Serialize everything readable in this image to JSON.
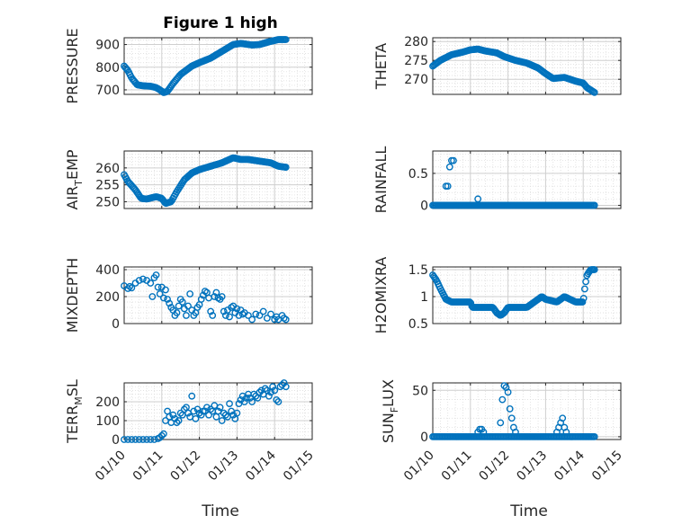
{
  "figure": {
    "title": "Figure 1 high",
    "xlabel_left": "Time",
    "xlabel_right": "Time",
    "marker_color": "#0072BD",
    "x_ticks": [
      "01/10",
      "01/11",
      "01/12",
      "01/13",
      "01/14",
      "01/15"
    ]
  },
  "chart_data": [
    {
      "type": "scatter",
      "name": "pressure",
      "ylabel": {
        "main": "PRESSURE",
        "sub": "",
        "tail": ""
      },
      "xlim": [
        0,
        5
      ],
      "ylim": [
        680,
        930
      ],
      "yticks": [
        700,
        800,
        900
      ],
      "grid": true,
      "anchors": [
        [
          0.0,
          805
        ],
        [
          0.1,
          785
        ],
        [
          0.2,
          752
        ],
        [
          0.35,
          722
        ],
        [
          0.5,
          718
        ],
        [
          0.7,
          716
        ],
        [
          0.85,
          710
        ],
        [
          0.95,
          700
        ],
        [
          1.05,
          688
        ],
        [
          1.15,
          693
        ],
        [
          1.3,
          728
        ],
        [
          1.5,
          768
        ],
        [
          1.8,
          805
        ],
        [
          2.0,
          820
        ],
        [
          2.3,
          840
        ],
        [
          2.6,
          870
        ],
        [
          2.9,
          900
        ],
        [
          3.1,
          905
        ],
        [
          3.4,
          898
        ],
        [
          3.6,
          900
        ],
        [
          3.85,
          912
        ],
        [
          4.1,
          922
        ],
        [
          4.3,
          922
        ]
      ],
      "n": 140
    },
    {
      "type": "scatter",
      "name": "theta",
      "ylabel": {
        "main": "THETA",
        "sub": "",
        "tail": ""
      },
      "xlim": [
        0,
        5
      ],
      "ylim": [
        266,
        281
      ],
      "yticks": [
        270,
        275,
        280
      ],
      "grid": true,
      "anchors": [
        [
          0.0,
          273.5
        ],
        [
          0.2,
          275
        ],
        [
          0.5,
          276.5
        ],
        [
          0.8,
          277.2
        ],
        [
          1.0,
          277.8
        ],
        [
          1.2,
          278
        ],
        [
          1.4,
          277.5
        ],
        [
          1.7,
          277
        ],
        [
          1.9,
          276
        ],
        [
          2.2,
          275
        ],
        [
          2.5,
          274.3
        ],
        [
          2.8,
          273
        ],
        [
          3.0,
          271.5
        ],
        [
          3.2,
          270.2
        ],
        [
          3.5,
          270.5
        ],
        [
          3.8,
          269.5
        ],
        [
          4.0,
          269
        ],
        [
          4.1,
          267.8
        ],
        [
          4.3,
          266.5
        ]
      ],
      "n": 140
    },
    {
      "type": "scatter",
      "name": "air-temp",
      "ylabel": {
        "main": "AIR",
        "sub": "T",
        "tail": "EMP"
      },
      "xlim": [
        0,
        5
      ],
      "ylim": [
        248,
        265
      ],
      "yticks": [
        250,
        255,
        260
      ],
      "grid": true,
      "anchors": [
        [
          0.0,
          258
        ],
        [
          0.1,
          256
        ],
        [
          0.3,
          253.5
        ],
        [
          0.45,
          251
        ],
        [
          0.6,
          250.8
        ],
        [
          0.85,
          251.5
        ],
        [
          1.0,
          251
        ],
        [
          1.1,
          249.5
        ],
        [
          1.25,
          250
        ],
        [
          1.4,
          253
        ],
        [
          1.6,
          256.5
        ],
        [
          1.8,
          258.5
        ],
        [
          2.0,
          259.5
        ],
        [
          2.3,
          260.5
        ],
        [
          2.6,
          261.5
        ],
        [
          2.9,
          263
        ],
        [
          3.1,
          262.5
        ],
        [
          3.3,
          262.5
        ],
        [
          3.6,
          262
        ],
        [
          3.9,
          261.5
        ],
        [
          4.1,
          260.5
        ],
        [
          4.3,
          260.2
        ]
      ],
      "n": 140
    },
    {
      "type": "scatter",
      "name": "rainfall",
      "ylabel": {
        "main": "RAINFALL",
        "sub": "",
        "tail": ""
      },
      "xlim": [
        0,
        5
      ],
      "ylim": [
        -0.05,
        0.85
      ],
      "yticks": [
        0,
        0.5
      ],
      "grid": true,
      "baseline": {
        "x0": 0.0,
        "x1": 4.3,
        "y": 0,
        "n": 130
      },
      "points": [
        [
          0.35,
          0.3
        ],
        [
          0.4,
          0.3
        ],
        [
          0.45,
          0.6
        ],
        [
          0.5,
          0.7
        ],
        [
          0.55,
          0.7
        ],
        [
          0.6,
          0.0
        ],
        [
          1.2,
          0.1
        ]
      ]
    },
    {
      "type": "scatter",
      "name": "mixdepth",
      "ylabel": {
        "main": "MIXDEPTH",
        "sub": "",
        "tail": ""
      },
      "xlim": [
        0,
        5
      ],
      "ylim": [
        0,
        420
      ],
      "yticks": [
        0,
        200,
        400
      ],
      "grid": true,
      "points": [
        [
          0.0,
          280
        ],
        [
          0.1,
          260
        ],
        [
          0.15,
          275
        ],
        [
          0.2,
          265
        ],
        [
          0.3,
          300
        ],
        [
          0.4,
          320
        ],
        [
          0.5,
          330
        ],
        [
          0.6,
          320
        ],
        [
          0.7,
          300
        ],
        [
          0.75,
          200
        ],
        [
          0.8,
          340
        ],
        [
          0.85,
          360
        ],
        [
          0.9,
          270
        ],
        [
          0.95,
          220
        ],
        [
          1.0,
          270
        ],
        [
          1.05,
          190
        ],
        [
          1.1,
          250
        ],
        [
          1.15,
          180
        ],
        [
          1.2,
          150
        ],
        [
          1.25,
          120
        ],
        [
          1.3,
          100
        ],
        [
          1.35,
          60
        ],
        [
          1.4,
          80
        ],
        [
          1.45,
          130
        ],
        [
          1.5,
          180
        ],
        [
          1.55,
          160
        ],
        [
          1.6,
          110
        ],
        [
          1.65,
          60
        ],
        [
          1.7,
          130
        ],
        [
          1.75,
          220
        ],
        [
          1.8,
          100
        ],
        [
          1.85,
          60
        ],
        [
          1.9,
          80
        ],
        [
          1.95,
          120
        ],
        [
          2.0,
          140
        ],
        [
          2.05,
          180
        ],
        [
          2.1,
          210
        ],
        [
          2.15,
          240
        ],
        [
          2.2,
          230
        ],
        [
          2.25,
          190
        ],
        [
          2.3,
          90
        ],
        [
          2.35,
          60
        ],
        [
          2.4,
          200
        ],
        [
          2.45,
          230
        ],
        [
          2.5,
          190
        ],
        [
          2.55,
          180
        ],
        [
          2.6,
          200
        ],
        [
          2.65,
          90
        ],
        [
          2.7,
          60
        ],
        [
          2.75,
          100
        ],
        [
          2.8,
          50
        ],
        [
          2.85,
          120
        ],
        [
          2.9,
          130
        ],
        [
          2.95,
          80
        ],
        [
          3.0,
          110
        ],
        [
          3.05,
          60
        ],
        [
          3.1,
          100
        ],
        [
          3.15,
          70
        ],
        [
          3.2,
          80
        ],
        [
          3.3,
          60
        ],
        [
          3.4,
          30
        ],
        [
          3.5,
          70
        ],
        [
          3.6,
          60
        ],
        [
          3.7,
          90
        ],
        [
          3.8,
          40
        ],
        [
          3.9,
          70
        ],
        [
          4.0,
          30
        ],
        [
          4.05,
          50
        ],
        [
          4.1,
          30
        ],
        [
          4.2,
          60
        ],
        [
          4.25,
          40
        ],
        [
          4.3,
          30
        ]
      ]
    },
    {
      "type": "scatter",
      "name": "h2omixra",
      "ylabel": {
        "main": "H2OMIXRA",
        "sub": "",
        "tail": ""
      },
      "xlim": [
        0,
        5
      ],
      "ylim": [
        0.5,
        1.55
      ],
      "yticks": [
        0.5,
        1,
        1.5
      ],
      "grid": true,
      "anchors": [
        [
          0.0,
          1.4
        ],
        [
          0.1,
          1.3
        ],
        [
          0.2,
          1.15
        ],
        [
          0.35,
          0.95
        ],
        [
          0.5,
          0.9
        ],
        [
          1.0,
          0.9
        ],
        [
          1.05,
          0.8
        ],
        [
          1.6,
          0.8
        ],
        [
          1.7,
          0.7
        ],
        [
          1.8,
          0.65
        ],
        [
          1.9,
          0.7
        ],
        [
          2.0,
          0.8
        ],
        [
          2.5,
          0.8
        ],
        [
          2.7,
          0.9
        ],
        [
          2.9,
          1.0
        ],
        [
          3.0,
          0.95
        ],
        [
          3.3,
          0.9
        ],
        [
          3.5,
          1.0
        ],
        [
          3.8,
          0.9
        ],
        [
          4.0,
          0.9
        ],
        [
          4.05,
          1.2
        ],
        [
          4.1,
          1.4
        ],
        [
          4.2,
          1.5
        ],
        [
          4.3,
          1.5
        ]
      ],
      "n": 150
    },
    {
      "type": "scatter",
      "name": "terr-msl",
      "ylabel": {
        "main": "TERR",
        "sub": "M",
        "tail": "SL"
      },
      "xlim": [
        0,
        5
      ],
      "ylim": [
        0,
        300
      ],
      "yticks": [
        0,
        100,
        200
      ],
      "grid": true,
      "points": [
        [
          0.0,
          0
        ],
        [
          0.1,
          0
        ],
        [
          0.2,
          0
        ],
        [
          0.3,
          0
        ],
        [
          0.4,
          0
        ],
        [
          0.5,
          0
        ],
        [
          0.6,
          0
        ],
        [
          0.7,
          0
        ],
        [
          0.8,
          0
        ],
        [
          0.9,
          5
        ],
        [
          0.95,
          10
        ],
        [
          1.0,
          20
        ],
        [
          1.05,
          30
        ],
        [
          1.1,
          100
        ],
        [
          1.15,
          150
        ],
        [
          1.2,
          120
        ],
        [
          1.25,
          90
        ],
        [
          1.3,
          130
        ],
        [
          1.35,
          110
        ],
        [
          1.4,
          90
        ],
        [
          1.45,
          100
        ],
        [
          1.5,
          140
        ],
        [
          1.55,
          130
        ],
        [
          1.6,
          160
        ],
        [
          1.65,
          170
        ],
        [
          1.7,
          140
        ],
        [
          1.75,
          120
        ],
        [
          1.8,
          230
        ],
        [
          1.85,
          150
        ],
        [
          1.9,
          110
        ],
        [
          1.95,
          160
        ],
        [
          2.0,
          140
        ],
        [
          2.05,
          130
        ],
        [
          2.1,
          150
        ],
        [
          2.15,
          150
        ],
        [
          2.2,
          170
        ],
        [
          2.25,
          130
        ],
        [
          2.3,
          160
        ],
        [
          2.35,
          150
        ],
        [
          2.4,
          180
        ],
        [
          2.45,
          120
        ],
        [
          2.5,
          150
        ],
        [
          2.55,
          170
        ],
        [
          2.6,
          100
        ],
        [
          2.65,
          140
        ],
        [
          2.7,
          130
        ],
        [
          2.75,
          120
        ],
        [
          2.8,
          190
        ],
        [
          2.85,
          150
        ],
        [
          2.9,
          130
        ],
        [
          2.95,
          110
        ],
        [
          3.0,
          140
        ],
        [
          3.05,
          190
        ],
        [
          3.1,
          210
        ],
        [
          3.15,
          230
        ],
        [
          3.2,
          200
        ],
        [
          3.25,
          220
        ],
        [
          3.3,
          240
        ],
        [
          3.35,
          220
        ],
        [
          3.4,
          200
        ],
        [
          3.45,
          240
        ],
        [
          3.5,
          230
        ],
        [
          3.55,
          220
        ],
        [
          3.6,
          250
        ],
        [
          3.65,
          260
        ],
        [
          3.7,
          240
        ],
        [
          3.75,
          270
        ],
        [
          3.8,
          260
        ],
        [
          3.85,
          230
        ],
        [
          3.9,
          250
        ],
        [
          3.95,
          280
        ],
        [
          4.0,
          260
        ],
        [
          4.05,
          210
        ],
        [
          4.1,
          200
        ],
        [
          4.15,
          280
        ],
        [
          4.2,
          290
        ],
        [
          4.25,
          300
        ],
        [
          4.3,
          280
        ]
      ]
    },
    {
      "type": "scatter",
      "name": "sun-flux",
      "ylabel": {
        "main": "SUN",
        "sub": "F",
        "tail": "LUX"
      },
      "xlim": [
        0,
        5
      ],
      "ylim": [
        -3,
        58
      ],
      "yticks": [
        0,
        50
      ],
      "grid": true,
      "baseline": {
        "x0": 0.0,
        "x1": 4.3,
        "y": 0,
        "n": 120
      },
      "points": [
        [
          1.2,
          5
        ],
        [
          1.25,
          8
        ],
        [
          1.3,
          8
        ],
        [
          1.35,
          5
        ],
        [
          1.8,
          15
        ],
        [
          1.85,
          40
        ],
        [
          1.9,
          55
        ],
        [
          1.95,
          53
        ],
        [
          2.0,
          48
        ],
        [
          2.05,
          30
        ],
        [
          2.1,
          20
        ],
        [
          2.15,
          10
        ],
        [
          2.2,
          5
        ],
        [
          3.3,
          5
        ],
        [
          3.35,
          10
        ],
        [
          3.4,
          15
        ],
        [
          3.45,
          20
        ],
        [
          3.5,
          10
        ],
        [
          3.55,
          5
        ]
      ]
    }
  ]
}
